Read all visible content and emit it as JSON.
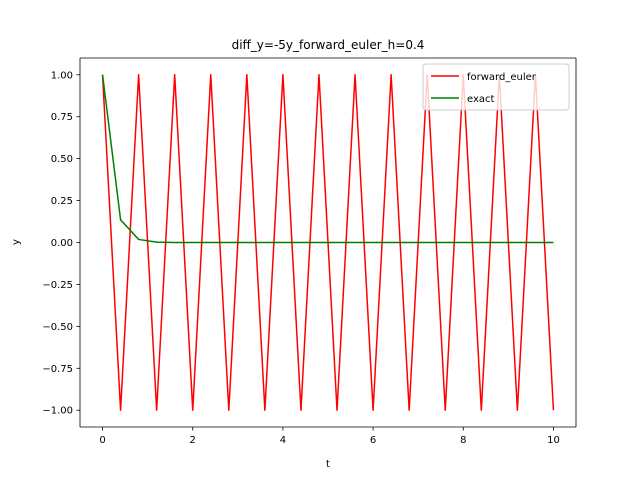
{
  "chart_data": {
    "type": "line",
    "title": "diff_y=-5y_forward_euler_h=0.4",
    "xlabel": "t",
    "ylabel": "y",
    "xlim": [
      -0.5,
      10.5
    ],
    "ylim": [
      -1.1,
      1.1
    ],
    "xticks": [
      0,
      2,
      4,
      6,
      8,
      10
    ],
    "xtick_labels": [
      "0",
      "2",
      "4",
      "6",
      "8",
      "10"
    ],
    "yticks": [
      -1.0,
      -0.75,
      -0.5,
      -0.25,
      0.0,
      0.25,
      0.5,
      0.75,
      1.0
    ],
    "ytick_labels": [
      "−1.00",
      "−0.75",
      "−0.50",
      "−0.25",
      "0.00",
      "0.25",
      "0.50",
      "0.75",
      "1.00"
    ],
    "grid": false,
    "legend_position": "top-right",
    "series": [
      {
        "name": "forward_euler",
        "color": "#ff0000",
        "x": [
          0,
          0.4,
          0.8,
          1.2,
          1.6,
          2.0,
          2.4,
          2.8,
          3.2,
          3.6,
          4.0,
          4.4,
          4.8,
          5.2,
          5.6,
          6.0,
          6.4,
          6.8,
          7.2,
          7.6,
          8.0,
          8.4,
          8.8,
          9.2,
          9.6,
          10.0
        ],
        "y": [
          1,
          -1,
          1,
          -1,
          1,
          -1,
          1,
          -1,
          1,
          -1,
          1,
          -1,
          1,
          -1,
          1,
          -1,
          1,
          -1,
          1,
          -1,
          1,
          -1,
          1,
          -1,
          1,
          -1
        ]
      },
      {
        "name": "exact",
        "color": "#008000",
        "x": [
          0,
          0.4,
          0.8,
          1.2,
          1.6,
          2.0,
          2.4,
          2.8,
          3.2,
          3.6,
          4.0,
          4.4,
          4.8,
          5.2,
          5.6,
          6.0,
          6.4,
          6.8,
          7.2,
          7.6,
          8.0,
          8.4,
          8.8,
          9.2,
          9.6,
          10.0
        ],
        "y": [
          1.0,
          0.1353,
          0.0183,
          0.0025,
          0.0003,
          0.0,
          0.0,
          0.0,
          0.0,
          0.0,
          0.0,
          0.0,
          0.0,
          0.0,
          0.0,
          0.0,
          0.0,
          0.0,
          0.0,
          0.0,
          0.0,
          0.0,
          0.0,
          0.0,
          0.0,
          0.0
        ]
      }
    ]
  }
}
